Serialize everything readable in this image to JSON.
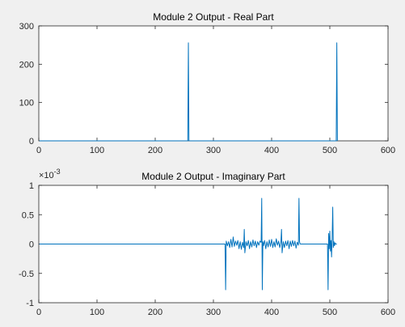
{
  "colors": {
    "series": "#0072BD",
    "background": "#f0f0f0"
  },
  "chart_data": [
    {
      "type": "line",
      "title": "Module 2 Output - Real Part",
      "xlim": [
        0,
        600
      ],
      "ylim": [
        0,
        300
      ],
      "xticks": [
        0,
        100,
        200,
        300,
        400,
        500,
        600
      ],
      "xtick_labels": [
        "0",
        "100",
        "200",
        "300",
        "400",
        "500",
        "600"
      ],
      "yticks": [
        0,
        100,
        200,
        300
      ],
      "ytick_labels": [
        "0",
        "100",
        "200",
        "300"
      ],
      "grid": false,
      "series": [
        {
          "x": [
            1,
            255,
            256,
            257,
            258,
            510,
            511,
            512,
            513
          ],
          "y": [
            0,
            0,
            0,
            256,
            0,
            0,
            0,
            256,
            0
          ]
        }
      ]
    },
    {
      "type": "line",
      "title": "Module 2 Output - Imaginary Part",
      "xlim": [
        0,
        600
      ],
      "ylim": [
        -1,
        1
      ],
      "yscale_exponent_label": "×10",
      "yscale_exponent_power": "-3",
      "xticks": [
        0,
        100,
        200,
        300,
        400,
        500,
        600
      ],
      "xtick_labels": [
        "0",
        "100",
        "200",
        "300",
        "400",
        "500",
        "600"
      ],
      "yticks": [
        -1,
        -0.5,
        0,
        0.5,
        1
      ],
      "ytick_labels": [
        "-1",
        "-0.5",
        "0",
        "0.5",
        "1"
      ],
      "grid": false,
      "series": [
        {
          "x": [
            1,
            320,
            321,
            322,
            324,
            326,
            328,
            330,
            332,
            334,
            336,
            338,
            340,
            342,
            344,
            346,
            348,
            350,
            352,
            353,
            354,
            356,
            358,
            360,
            362,
            364,
            366,
            368,
            370,
            372,
            374,
            376,
            378,
            380,
            382,
            383,
            384,
            385,
            386,
            388,
            390,
            392,
            394,
            396,
            398,
            400,
            402,
            404,
            406,
            408,
            410,
            412,
            414,
            416,
            417,
            418,
            420,
            422,
            424,
            426,
            428,
            430,
            432,
            434,
            436,
            438,
            440,
            442,
            444,
            446,
            447,
            448,
            449,
            450,
            496,
            497,
            498,
            499,
            500,
            501,
            502,
            503,
            504,
            505,
            506,
            507,
            508,
            509,
            510,
            511,
            512
          ],
          "y": [
            0,
            0,
            -0.00078,
            5e-05,
            -3e-05,
            4e-05,
            -6e-05,
            8e-05,
            -5e-05,
            0.00012,
            -4e-05,
            5e-05,
            -2e-05,
            6e-05,
            -8e-05,
            4e-05,
            -9e-05,
            3e-05,
            -6e-05,
            0.00025,
            -0.00015,
            4e-05,
            -3e-05,
            6e-05,
            -8e-05,
            4e-05,
            -5e-05,
            7e-05,
            -3e-05,
            5e-05,
            -6e-05,
            4e-05,
            -2e-05,
            5e-05,
            3e-05,
            0.00078,
            -0.00078,
            4e-05,
            -3e-05,
            6e-05,
            -8e-05,
            4e-05,
            -5e-05,
            7e-05,
            -4e-05,
            8e-05,
            -6e-05,
            4e-05,
            -5e-05,
            9e-05,
            -2e-05,
            5e-05,
            -6e-05,
            4e-05,
            0.00025,
            -0.00015,
            4e-05,
            -6e-05,
            5e-05,
            -3e-05,
            6e-05,
            -8e-05,
            5e-05,
            -4e-05,
            6e-05,
            -3e-05,
            5e-05,
            -7e-05,
            3e-05,
            -2e-05,
            0.00078,
            4e-05,
            0,
            0,
            0,
            -0.00078,
            0.00018,
            -8e-05,
            0.00022,
            -0.00012,
            6e-05,
            -0.00022,
            9e-05,
            0.00063,
            -6e-05,
            4e-05,
            -3e-05,
            2e-05,
            0,
            0,
            0
          ]
        }
      ]
    }
  ]
}
